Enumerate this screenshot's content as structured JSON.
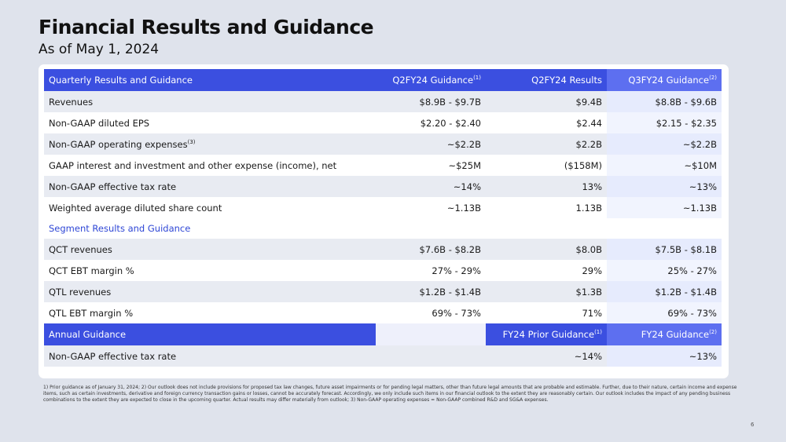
{
  "title": "Financial Results and Guidance",
  "subtitle": "As of May 1, 2024",
  "header": {
    "label": "Quarterly Results and Guidance",
    "col1": "Q2FY24 Guidance",
    "col1_sup": "(1)",
    "col2": "Q2FY24 Results",
    "col3": "Q3FY24 Guidance",
    "col3_sup": "(2)"
  },
  "quarterly_rows": [
    {
      "label": "Revenues",
      "sup": "",
      "g": "$8.9B - $9.7B",
      "r": "$9.4B",
      "n": "$8.8B - $9.6B"
    },
    {
      "label": "Non-GAAP diluted EPS",
      "sup": "",
      "g": "$2.20 - $2.40",
      "r": "$2.44",
      "n": "$2.15 - $2.35"
    },
    {
      "label": "Non-GAAP operating expenses",
      "sup": "(3)",
      "g": "~$2.2B",
      "r": "$2.2B",
      "n": "~$2.2B"
    },
    {
      "label": "GAAP interest and investment and other expense (income), net",
      "sup": "",
      "g": "~$25M",
      "r": "($158M)",
      "n": "~$10M"
    },
    {
      "label": "Non-GAAP effective tax rate",
      "sup": "",
      "g": "~14%",
      "r": "13%",
      "n": "~13%"
    },
    {
      "label": "Weighted average diluted share count",
      "sup": "",
      "g": "~1.13B",
      "r": "1.13B",
      "n": "~1.13B"
    }
  ],
  "segment_label": "Segment Results and Guidance",
  "segment_rows": [
    {
      "label": "QCT revenues",
      "g": "$7.6B - $8.2B",
      "r": "$8.0B",
      "n": "$7.5B - $8.1B"
    },
    {
      "label": "QCT EBT margin %",
      "g": "27% - 29%",
      "r": "29%",
      "n": "25% - 27%"
    },
    {
      "label": "QTL revenues",
      "g": "$1.2B - $1.4B",
      "r": "$1.3B",
      "n": "$1.2B - $1.4B"
    },
    {
      "label": "QTL EBT margin %",
      "g": "69% - 73%",
      "r": "71%",
      "n": "69% - 73%"
    }
  ],
  "annual_header": {
    "label": "Annual Guidance",
    "col2": "FY24 Prior Guidance",
    "col2_sup": "(1)",
    "col3": "FY24 Guidance",
    "col3_sup": "(2)"
  },
  "annual_rows": [
    {
      "label": "Non-GAAP effective tax rate",
      "g": "",
      "r": "~14%",
      "n": "~13%"
    }
  ],
  "footnote": "1) Prior guidance as of January 31, 2024; 2) Our outlook does not include provisions for proposed tax law changes, future asset impairments or for pending legal matters, other than future legal amounts that are probable and estimable. Further, due to their nature, certain income and expense items, such as certain investments, derivative and foreign currency transaction gains or losses, cannot be accurately forecast. Accordingly, we only include such items in our financial outlook to the extent they are reasonably certain. Our outlook includes the impact of any pending business combinations to the extent they are expected to close in the upcoming quarter. Actual results may differ materially from outlook; 3) Non-GAAP operating expenses = Non-GAAP combined R&D and SG&A expenses.",
  "page_number": "6"
}
